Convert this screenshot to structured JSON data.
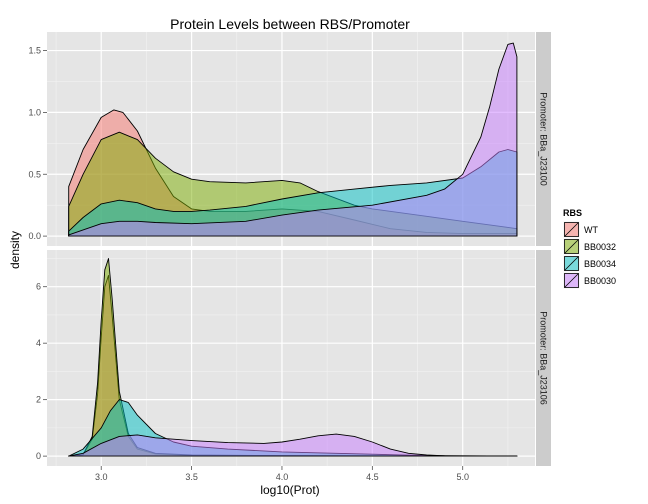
{
  "chart_data": {
    "type": "area",
    "title": "Protein Levels between RBS/Promoter",
    "xlabel": "log10(Prot)",
    "ylabel": "density",
    "xlim": [
      2.7,
      5.4
    ],
    "x_ticks": [
      3.0,
      3.5,
      4.0,
      4.5,
      5.0
    ],
    "x_tick_labels": [
      "3.0",
      "3.5",
      "4.0",
      "4.5",
      "5.0"
    ],
    "grid": true,
    "legend": {
      "title": "RBS",
      "position": "right",
      "entries": [
        "WT",
        "BB0032",
        "BB0034",
        "BB0030"
      ]
    },
    "colors": {
      "WT": "#F8766D",
      "BB0032": "#7CAE00",
      "BB0034": "#00BFC4",
      "BB0030": "#C77CFF"
    },
    "panels": [
      {
        "strip_label": "Promoter: BBa_J23100",
        "ylim": [
          -0.08,
          1.65
        ],
        "y_ticks": [
          0.0,
          0.5,
          1.0,
          1.5
        ],
        "y_tick_labels": [
          "0.0",
          "0.5",
          "1.0",
          "1.5"
        ],
        "series": [
          {
            "name": "WT",
            "x": [
              2.82,
              2.9,
              3.0,
              3.07,
              3.12,
              3.2,
              3.3,
              3.4,
              3.5,
              3.6,
              3.8,
              4.0,
              4.2,
              4.4,
              4.6,
              4.8,
              5.0,
              5.2,
              5.3
            ],
            "y": [
              0.4,
              0.7,
              0.96,
              1.02,
              1.0,
              0.85,
              0.55,
              0.32,
              0.22,
              0.2,
              0.2,
              0.22,
              0.2,
              0.13,
              0.06,
              0.03,
              0.02,
              0.02,
              0.02
            ]
          },
          {
            "name": "BB0032",
            "x": [
              2.82,
              2.9,
              3.0,
              3.1,
              3.2,
              3.3,
              3.4,
              3.5,
              3.6,
              3.8,
              4.0,
              4.1,
              4.2,
              4.4,
              4.5,
              4.8,
              5.0,
              5.2,
              5.3
            ],
            "y": [
              0.24,
              0.5,
              0.78,
              0.84,
              0.78,
              0.63,
              0.52,
              0.46,
              0.44,
              0.43,
              0.45,
              0.43,
              0.36,
              0.25,
              0.22,
              0.16,
              0.12,
              0.08,
              0.06
            ]
          },
          {
            "name": "BB0034",
            "x": [
              2.82,
              2.9,
              3.0,
              3.1,
              3.2,
              3.3,
              3.4,
              3.5,
              3.6,
              3.8,
              4.0,
              4.2,
              4.4,
              4.6,
              4.8,
              5.0,
              5.1,
              5.2,
              5.25,
              5.3
            ],
            "y": [
              0.04,
              0.15,
              0.26,
              0.29,
              0.27,
              0.22,
              0.2,
              0.2,
              0.21,
              0.24,
              0.3,
              0.35,
              0.38,
              0.41,
              0.43,
              0.47,
              0.56,
              0.68,
              0.7,
              0.68
            ]
          },
          {
            "name": "BB0030",
            "x": [
              2.82,
              2.9,
              3.0,
              3.1,
              3.2,
              3.3,
              3.5,
              3.8,
              4.0,
              4.2,
              4.5,
              4.8,
              4.9,
              5.0,
              5.1,
              5.15,
              5.2,
              5.25,
              5.28,
              5.3
            ],
            "y": [
              0.01,
              0.05,
              0.1,
              0.12,
              0.12,
              0.11,
              0.1,
              0.12,
              0.17,
              0.21,
              0.25,
              0.33,
              0.38,
              0.5,
              0.8,
              1.05,
              1.35,
              1.55,
              1.56,
              1.45
            ]
          }
        ]
      },
      {
        "strip_label": "Promoter: BBa_J23106",
        "ylim": [
          -0.35,
          7.3
        ],
        "y_ticks": [
          0,
          2,
          4,
          6
        ],
        "y_tick_labels": [
          "0",
          "2",
          "4",
          "6"
        ],
        "series": [
          {
            "name": "WT",
            "x": [
              2.82,
              2.9,
              2.95,
              2.98,
              3.0,
              3.02,
              3.04,
              3.06,
              3.1,
              3.15,
              3.2,
              3.3,
              3.5,
              4.0,
              4.5,
              5.3
            ],
            "y": [
              0.0,
              0.05,
              0.6,
              2.2,
              4.2,
              6.0,
              6.4,
              5.0,
              2.0,
              0.7,
              0.25,
              0.08,
              0.03,
              0.02,
              0.01,
              0.0
            ]
          },
          {
            "name": "BB0032",
            "x": [
              2.82,
              2.9,
              2.95,
              2.98,
              3.0,
              3.02,
              3.04,
              3.06,
              3.1,
              3.15,
              3.2,
              3.3,
              3.5,
              4.0,
              4.5,
              5.3
            ],
            "y": [
              0.0,
              0.05,
              0.7,
              2.6,
              4.8,
              6.6,
              7.0,
              5.6,
              2.3,
              0.8,
              0.3,
              0.1,
              0.04,
              0.02,
              0.01,
              0.0
            ]
          },
          {
            "name": "BB0034",
            "x": [
              2.82,
              2.9,
              3.0,
              3.05,
              3.1,
              3.15,
              3.2,
              3.3,
              3.4,
              3.5,
              3.7,
              4.0,
              4.3,
              4.6,
              4.8,
              5.3
            ],
            "y": [
              0.0,
              0.25,
              1.0,
              1.6,
              2.0,
              1.9,
              1.45,
              0.8,
              0.5,
              0.35,
              0.25,
              0.15,
              0.1,
              0.05,
              0.02,
              0.0
            ]
          },
          {
            "name": "BB0030",
            "x": [
              2.82,
              2.9,
              3.0,
              3.1,
              3.2,
              3.3,
              3.5,
              3.7,
              3.9,
              4.0,
              4.1,
              4.2,
              4.3,
              4.4,
              4.5,
              4.6,
              4.7,
              4.8,
              4.9,
              5.3
            ],
            "y": [
              0.0,
              0.1,
              0.45,
              0.7,
              0.75,
              0.65,
              0.55,
              0.48,
              0.45,
              0.5,
              0.6,
              0.72,
              0.78,
              0.7,
              0.5,
              0.25,
              0.1,
              0.04,
              0.01,
              0.0
            ]
          }
        ]
      }
    ]
  }
}
